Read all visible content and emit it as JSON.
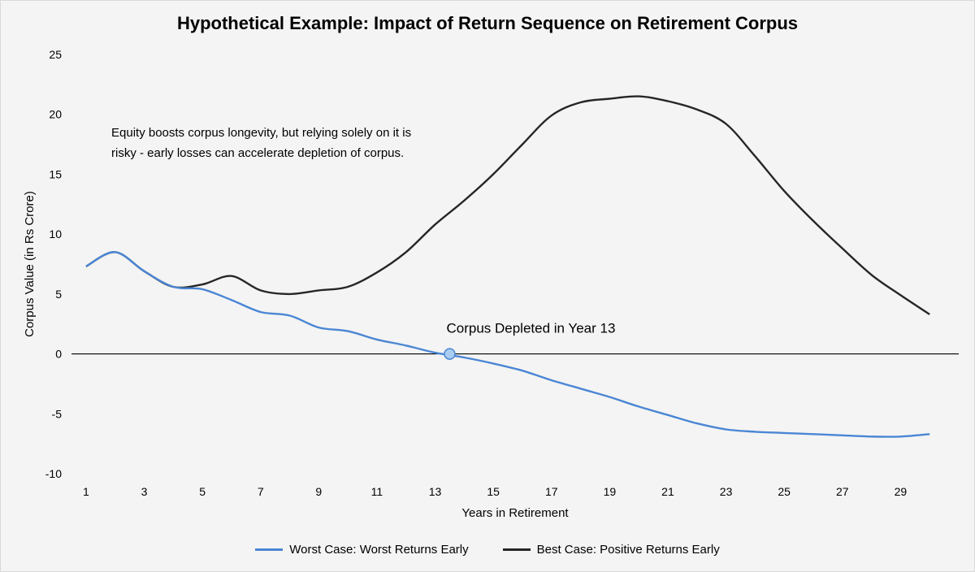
{
  "chart_data": {
    "type": "line",
    "title": "Hypothetical Example: Impact of Return Sequence on Retirement Corpus",
    "xlabel": "Years in Retirement",
    "ylabel": "Corpus Value (in Rs Crore)",
    "x": [
      1,
      2,
      3,
      4,
      5,
      6,
      7,
      8,
      9,
      10,
      11,
      12,
      13,
      14,
      15,
      16,
      17,
      18,
      19,
      20,
      21,
      22,
      23,
      24,
      25,
      26,
      27,
      28,
      29,
      30
    ],
    "x_ticks": [
      1,
      3,
      5,
      7,
      9,
      11,
      13,
      15,
      17,
      19,
      21,
      23,
      25,
      27,
      29
    ],
    "xlim": [
      0.5,
      31
    ],
    "ylim": [
      -10,
      25
    ],
    "y_ticks": [
      -10,
      -5,
      0,
      5,
      10,
      15,
      20,
      25
    ],
    "grid": false,
    "legend_position": "bottom",
    "series": [
      {
        "name": "Worst Case: Worst Returns Early",
        "color": "#4a86d4",
        "values": [
          7.3,
          8.5,
          6.9,
          5.6,
          5.4,
          4.5,
          3.5,
          3.2,
          2.2,
          1.9,
          1.2,
          0.7,
          0.1,
          -0.3,
          -0.8,
          -1.4,
          -2.2,
          -2.9,
          -3.6,
          -4.4,
          -5.1,
          -5.8,
          -6.3,
          -6.5,
          -6.6,
          -6.7,
          -6.8,
          -6.9,
          -6.9,
          -6.7
        ]
      },
      {
        "name": "Best Case: Positive Returns Early",
        "color": "#262626",
        "values": [
          7.3,
          8.5,
          6.9,
          5.6,
          5.8,
          6.5,
          5.3,
          5.0,
          5.3,
          5.6,
          6.8,
          8.5,
          10.8,
          12.8,
          15.0,
          17.5,
          19.9,
          21.0,
          21.3,
          21.5,
          21.1,
          20.4,
          19.2,
          16.5,
          13.6,
          11.1,
          8.8,
          6.6,
          4.9,
          3.3
        ]
      }
    ],
    "annotations": {
      "note_line1": "Equity boosts corpus longevity, but relying solely on it is",
      "note_line2": "risky - early losses can accelerate depletion of corpus.",
      "depletion_label": "Corpus Depleted in Year 13",
      "depletion_point": {
        "x": 13.5,
        "y": 0
      }
    }
  }
}
